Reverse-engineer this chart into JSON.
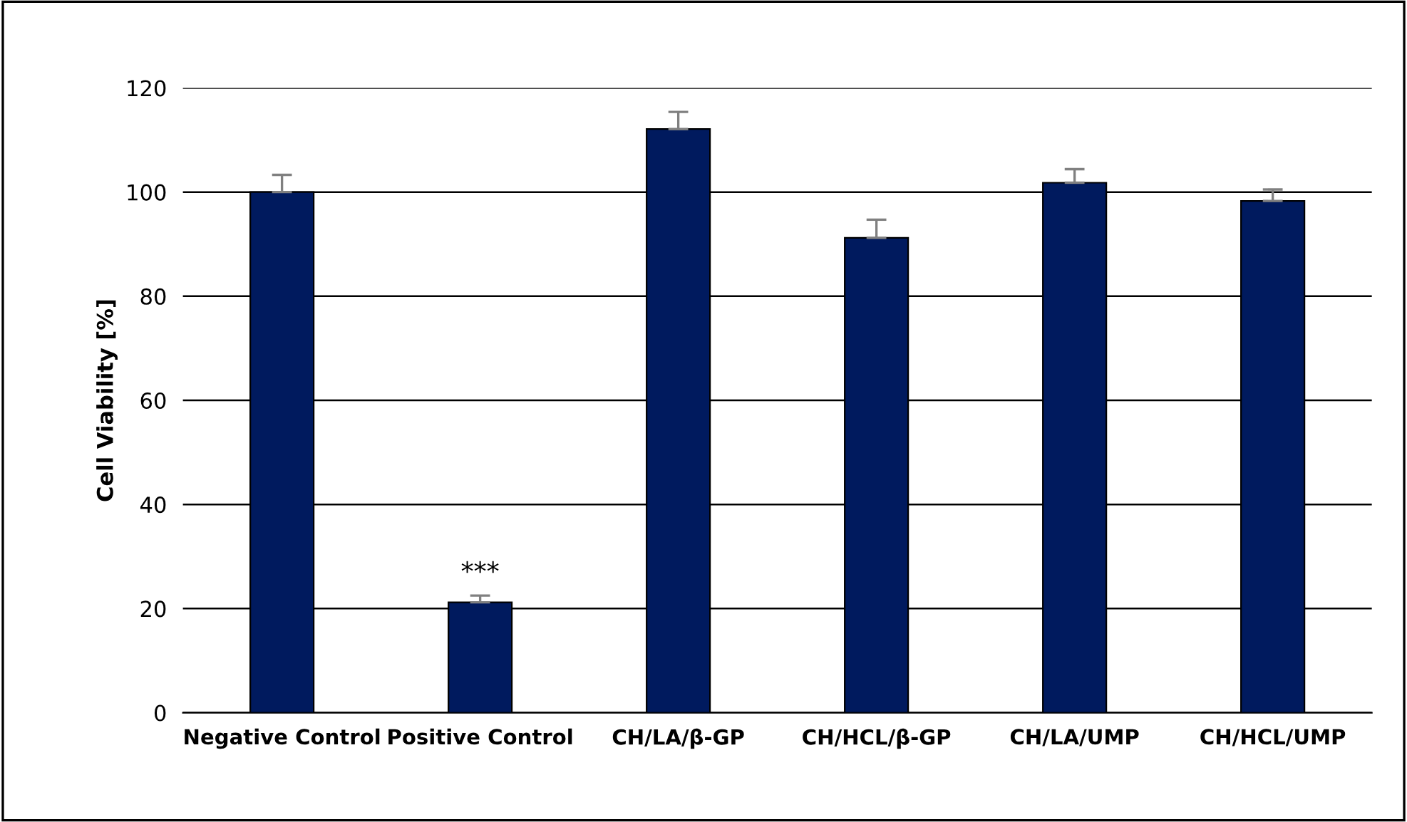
{
  "chart_data": {
    "type": "bar",
    "ylabel": "Cell Viability [%]",
    "categories": [
      "Negative Control",
      "Positive Control",
      "CH/LA/β-GP",
      "CH/HCL/β-GP",
      "CH/LA/UMP",
      "CH/HCL/UMP"
    ],
    "values": [
      100,
      21.2,
      112.1,
      91.2,
      101.8,
      98.3
    ],
    "errors": [
      3.3,
      1.3,
      3.3,
      3.5,
      2.6,
      2.2
    ],
    "color": "#001a5e",
    "ylim": [
      0,
      120
    ],
    "yticks": [
      0,
      20,
      40,
      60,
      80,
      100,
      120
    ],
    "grid": "y",
    "annotations": [
      {
        "text": "***",
        "x": "Positive Control",
        "y": 22.5
      }
    ]
  }
}
